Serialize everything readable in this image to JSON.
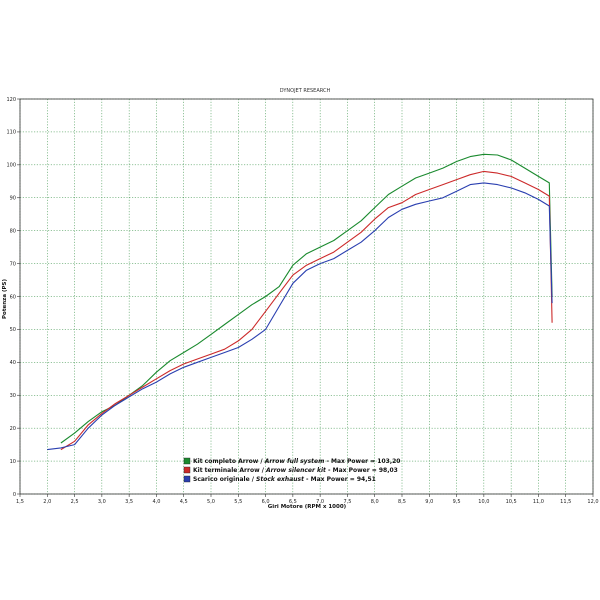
{
  "chart_data": {
    "type": "line",
    "title": "DYNOJET RESEARCH",
    "xlabel": "Giri Motore (RPM x 1000)",
    "ylabel": "Potenza (PS)",
    "xlim": [
      1.5,
      12.0
    ],
    "ylim": [
      0,
      120
    ],
    "xticks": [
      "1,5",
      "2,0",
      "2,5",
      "3,0",
      "3,5",
      "4,0",
      "4,5",
      "5,0",
      "5,5",
      "6,0",
      "6,5",
      "7,0",
      "7,5",
      "8,0",
      "8,5",
      "9,0",
      "9,5",
      "10,0",
      "10,5",
      "11,0",
      "11,5",
      "12,0"
    ],
    "yticks": [
      "0",
      "10",
      "20",
      "30",
      "40",
      "50",
      "60",
      "70",
      "80",
      "90",
      "100",
      "110",
      "120"
    ],
    "grid": true,
    "legend_position": "bottom-center",
    "series": [
      {
        "name_prefix": "Kit completo Arrow / ",
        "name_italic": "Arrow full system",
        "name_suffix": " - Max Power = 103,20",
        "color": "#1a8a2e",
        "x": [
          2.25,
          2.5,
          2.75,
          3.0,
          3.25,
          3.5,
          3.75,
          4.0,
          4.25,
          4.5,
          4.75,
          5.0,
          5.25,
          5.5,
          5.75,
          6.0,
          6.25,
          6.5,
          6.75,
          7.0,
          7.25,
          7.5,
          7.75,
          8.0,
          8.25,
          8.5,
          8.75,
          9.0,
          9.25,
          9.5,
          9.75,
          10.0,
          10.25,
          10.5,
          10.75,
          11.0,
          11.2,
          11.25
        ],
        "y": [
          15.5,
          18.5,
          22,
          25,
          27,
          30,
          33,
          37,
          40.5,
          43,
          45.5,
          48.5,
          51.5,
          54.5,
          57.5,
          60,
          63,
          69.5,
          73,
          75,
          77,
          80,
          83,
          87,
          91,
          93.5,
          96,
          97.5,
          99,
          101,
          102.5,
          103.2,
          103,
          101.5,
          99,
          96.5,
          94.5,
          60
        ]
      },
      {
        "name_prefix": "Kit terminale Arrow / ",
        "name_italic": "Arrow silencer kit",
        "name_suffix": " - Max Power = 98,03",
        "color": "#cc2a2a",
        "x": [
          2.25,
          2.5,
          2.75,
          3.0,
          3.25,
          3.5,
          3.75,
          4.0,
          4.25,
          4.5,
          4.75,
          5.0,
          5.25,
          5.5,
          5.75,
          6.0,
          6.25,
          6.5,
          6.75,
          7.0,
          7.25,
          7.5,
          7.75,
          8.0,
          8.25,
          8.5,
          8.75,
          9.0,
          9.25,
          9.5,
          9.75,
          10.0,
          10.25,
          10.5,
          10.75,
          11.0,
          11.2,
          11.25
        ],
        "y": [
          13.5,
          16,
          21,
          24.5,
          27.5,
          30,
          32.5,
          35,
          37.5,
          39.5,
          41,
          42.5,
          44,
          46.5,
          50,
          55.5,
          61,
          66.5,
          69.5,
          71.5,
          73.5,
          76.5,
          79.5,
          83.5,
          87,
          88.5,
          91,
          92.5,
          94,
          95.5,
          97,
          98,
          97.5,
          96.5,
          94.5,
          92.5,
          90.5,
          52
        ]
      },
      {
        "name_prefix": "Scarico originale / ",
        "name_italic": "Stock exhaust",
        "name_suffix": " - Max Power = 94,51",
        "color": "#2a3fb0",
        "x": [
          2.0,
          2.25,
          2.5,
          2.75,
          3.0,
          3.25,
          3.5,
          3.75,
          4.0,
          4.25,
          4.5,
          4.75,
          5.0,
          5.25,
          5.5,
          5.75,
          6.0,
          6.25,
          6.5,
          6.75,
          7.0,
          7.25,
          7.5,
          7.75,
          8.0,
          8.25,
          8.5,
          8.75,
          9.0,
          9.25,
          9.5,
          9.75,
          10.0,
          10.25,
          10.5,
          10.75,
          11.0,
          11.2,
          11.25
        ],
        "y": [
          13.5,
          14,
          15,
          20,
          24,
          27,
          29.5,
          32,
          34,
          36.5,
          38.5,
          40,
          41.5,
          43,
          44.5,
          47,
          50,
          57,
          64,
          68,
          70,
          71.5,
          74,
          76.5,
          80,
          84,
          86.5,
          88,
          89,
          90,
          92,
          94,
          94.5,
          94,
          93,
          91.5,
          89.5,
          87.5,
          58
        ]
      }
    ]
  }
}
